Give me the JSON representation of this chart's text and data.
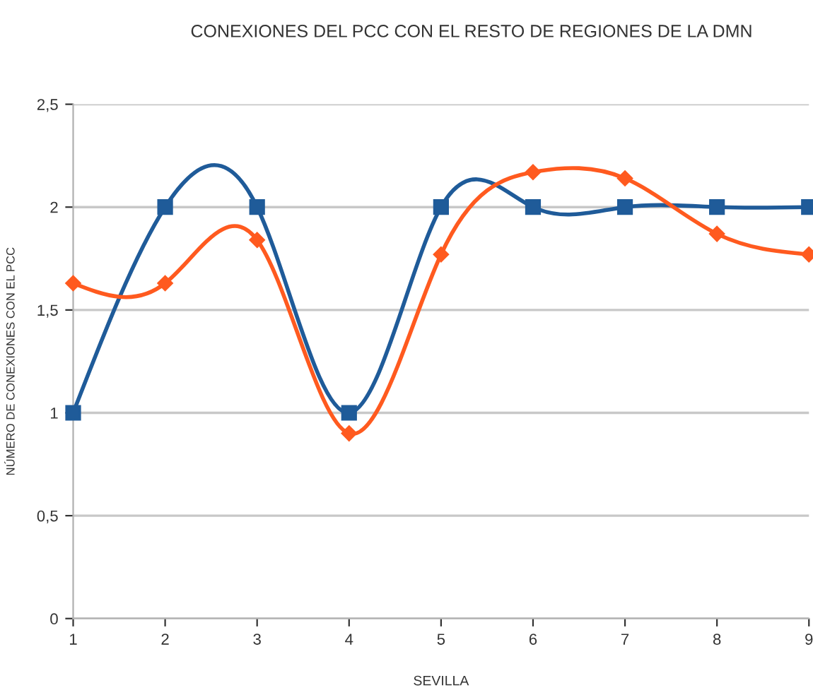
{
  "chart_data": {
    "type": "line",
    "title": "CONEXIONES DEL PCC CON EL RESTO DE REGIONES DE LA DMN",
    "xlabel": "SEVILLA",
    "ylabel": "NÚMERO DE CONEXIONES CON EL PCC",
    "x": [
      1,
      2,
      3,
      4,
      5,
      6,
      7,
      8,
      9
    ],
    "series": [
      {
        "color": "#1f5b99",
        "marker": "square",
        "values": [
          1,
          2,
          2,
          1,
          2,
          2,
          2,
          2,
          2
        ]
      },
      {
        "color": "#ff5a1f",
        "marker": "diamond",
        "values": [
          1.63,
          1.63,
          1.84,
          0.9,
          1.77,
          2.17,
          2.14,
          1.87,
          1.77
        ]
      }
    ],
    "xlim": [
      1,
      9
    ],
    "xticks": [
      1,
      2,
      3,
      4,
      5,
      6,
      7,
      8,
      9
    ],
    "ylim": [
      0,
      2.5
    ],
    "yticks": [
      0,
      {
        "value": 0.5,
        "label": "0,5"
      },
      1,
      {
        "value": 1.5,
        "label": "1,5"
      },
      2,
      {
        "value": 2.5,
        "label": "2,5"
      }
    ],
    "grid": "y",
    "line_style": "solid"
  }
}
